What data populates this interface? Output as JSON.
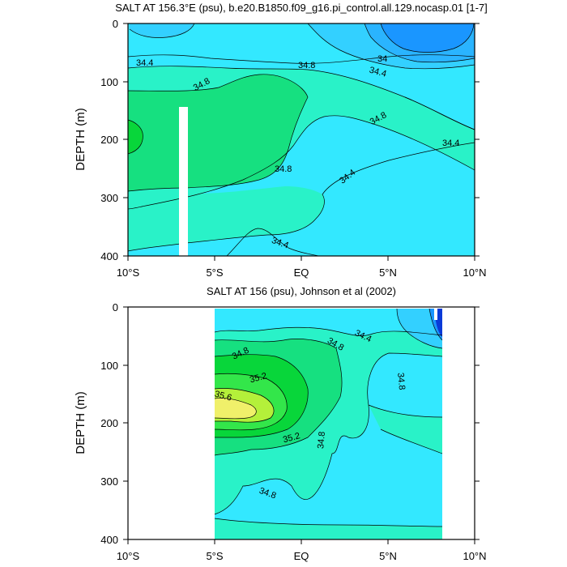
{
  "chart_data": [
    {
      "type": "contour",
      "title": "SALT AT 156.3°E (psu), b.e20.B1850.f09_g16.pi_control.all.129.nocasp.01 [1-7]",
      "ylabel": "DEPTH (m)",
      "xlim": [
        -10,
        10
      ],
      "ylim": [
        0,
        400
      ],
      "y_ticks": [
        "0",
        "100",
        "200",
        "300",
        "400"
      ],
      "x_ticks": [
        "10°S",
        "5°S",
        "EQ",
        "5°N",
        "10°N"
      ],
      "contour_labels": [
        {
          "text": "34.4",
          "x": -9.1,
          "y": 65
        },
        {
          "text": "34.8",
          "x": -5.6,
          "y": 100
        },
        {
          "text": "34.8",
          "x": 0.2,
          "y": 70
        },
        {
          "text": "34",
          "x": 4.6,
          "y": 60
        },
        {
          "text": "34.4",
          "x": 4.2,
          "y": 82
        },
        {
          "text": "34.8",
          "x": 4.2,
          "y": 152
        },
        {
          "text": "34.4",
          "x": 8.4,
          "y": 200
        },
        {
          "text": "34.8",
          "x": -1.3,
          "y": 250
        },
        {
          "text": "34.4",
          "x": 2.5,
          "y": 257
        },
        {
          "text": "34.4",
          "x": -1.4,
          "y": 375
        }
      ]
    },
    {
      "type": "contour",
      "title": "SALT AT 156 (psu), Johnson et al (2002)",
      "ylabel": "DEPTH (m)",
      "xlim": [
        -10,
        10
      ],
      "ylim": [
        0,
        400
      ],
      "data_xrange": [
        -5,
        8
      ],
      "y_ticks": [
        "0",
        "100",
        "200",
        "300",
        "400"
      ],
      "x_ticks": [
        "10°S",
        "5°S",
        "EQ",
        "5°N",
        "10°N"
      ],
      "contour_labels": [
        {
          "text": "34.4",
          "x": 3.4,
          "y": 48
        },
        {
          "text": "34.8",
          "x": -3.6,
          "y": 72
        },
        {
          "text": "34.8",
          "x": 2.0,
          "y": 62
        },
        {
          "text": "35.2",
          "x": -2.4,
          "y": 124
        },
        {
          "text": "34.8",
          "x": 5.4,
          "y": 133
        },
        {
          "text": "35.6",
          "x": -4.4,
          "y": 160
        },
        {
          "text": "35.2",
          "x": -0.6,
          "y": 218
        },
        {
          "text": "34.8",
          "x": 1.2,
          "y": 230
        },
        {
          "text": "34.8",
          "x": -1.9,
          "y": 322
        }
      ]
    }
  ]
}
